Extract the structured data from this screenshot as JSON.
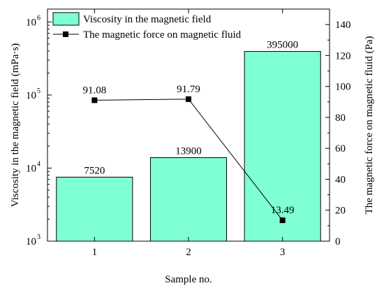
{
  "chart_data": {
    "type": "bar",
    "xlabel": "Sample no.",
    "categories": [
      "1",
      "2",
      "3"
    ],
    "left_axis": {
      "label": "Viscosity in the magnetic field (mPa·s)",
      "scale": "log",
      "ylim": [
        1000,
        1500000
      ],
      "ticks": [
        {
          "value": 1000,
          "base": "10",
          "exp": "3"
        },
        {
          "value": 10000,
          "base": "10",
          "exp": "4"
        },
        {
          "value": 100000,
          "base": "10",
          "exp": "5"
        },
        {
          "value": 1000000,
          "base": "10",
          "exp": "6"
        }
      ]
    },
    "right_axis": {
      "label": "The magnetic force on magnetic fluid (Pa)",
      "scale": "linear",
      "ylim": [
        0,
        150
      ],
      "ticks": [
        0,
        20,
        40,
        60,
        80,
        100,
        120,
        140
      ]
    },
    "series": [
      {
        "name": "Viscosity in the magnetic field",
        "kind": "bar",
        "axis": "left",
        "values": [
          7520,
          13900,
          395000
        ],
        "labels": [
          "7520",
          "13900",
          "395000"
        ],
        "color": "#7FFFD4"
      },
      {
        "name": "The magnetic force on magnetic fluid",
        "kind": "line",
        "axis": "right",
        "values": [
          91.08,
          91.79,
          13.49
        ],
        "labels": [
          "91.08",
          "91.79",
          "13.49"
        ],
        "color": "#000000"
      }
    ],
    "legend": "top-left",
    "grid": false
  }
}
